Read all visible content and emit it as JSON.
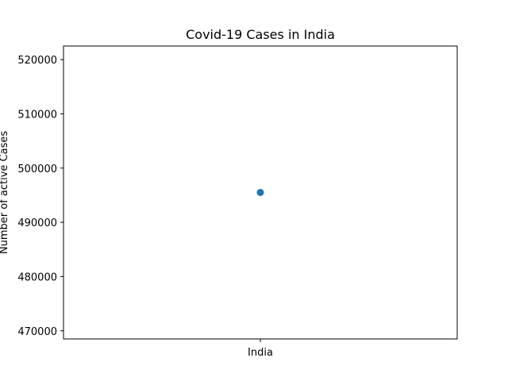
{
  "chart_data": {
    "type": "scatter",
    "title": "Covid-19 Cases in India",
    "xlabel": "",
    "ylabel": "Number of active Cases",
    "categories": [
      "India"
    ],
    "series": [
      {
        "values": [
          495500
        ],
        "color": "#1f77b4"
      }
    ],
    "ylim": [
      468500,
      522500
    ],
    "yticks": [
      470000,
      480000,
      490000,
      500000,
      510000,
      520000
    ],
    "grid": false,
    "legend": "none"
  }
}
